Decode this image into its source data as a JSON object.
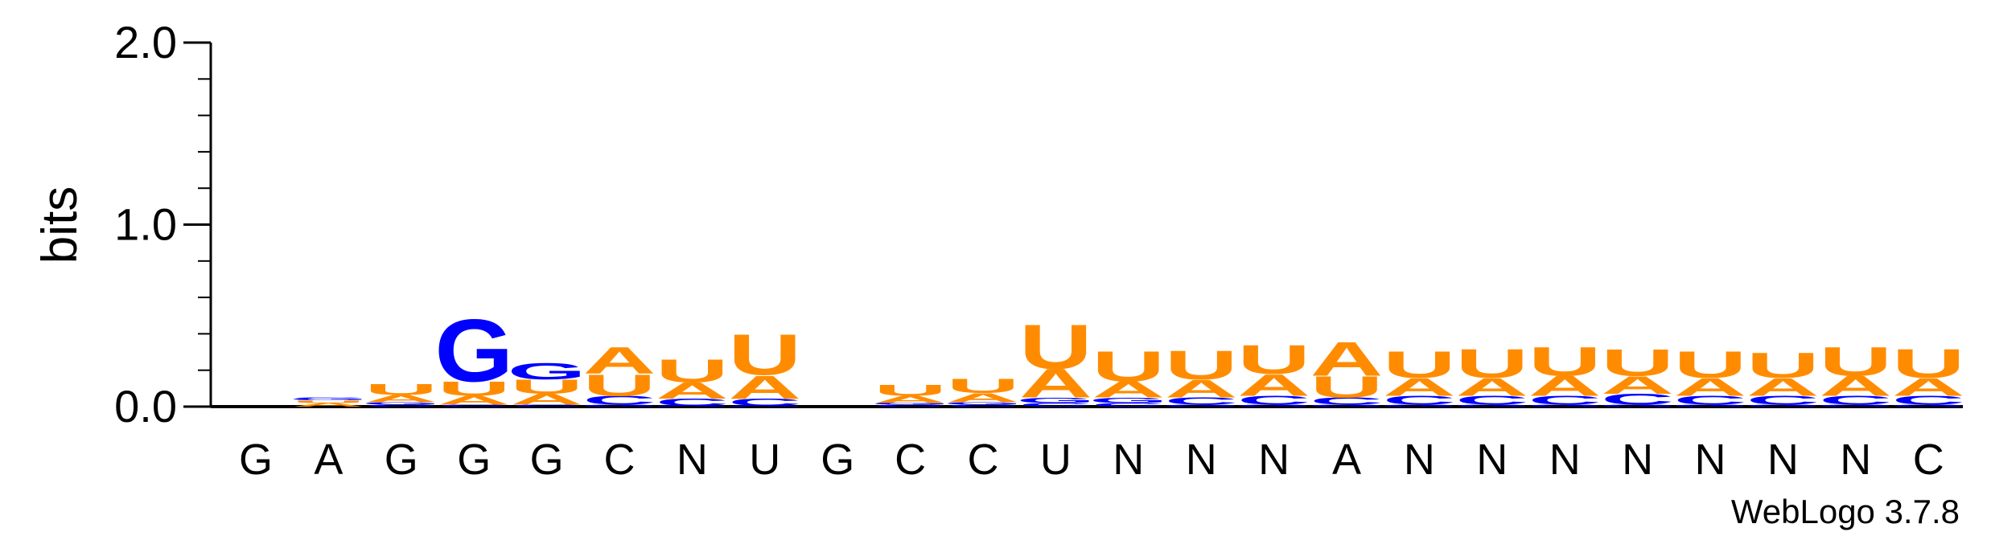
{
  "chart_data": {
    "type": "sequence-logo",
    "ylabel": "bits",
    "ylim": [
      0,
      2.0
    ],
    "yticks": [
      {
        "value": 0.0,
        "label": "0.0"
      },
      {
        "value": 1.0,
        "label": "1.0"
      },
      {
        "value": 2.0,
        "label": "2.0"
      }
    ],
    "colors": {
      "A": "#ff8c00",
      "U": "#ff8c00",
      "G": "#0000ff",
      "C": "#0000ff"
    },
    "positions": [
      {
        "label": "G",
        "stack": []
      },
      {
        "label": "A",
        "stack": [
          {
            "base": "A",
            "bits": 0.02
          },
          {
            "base": "U",
            "bits": 0.015
          },
          {
            "base": "G",
            "bits": 0.01
          },
          {
            "base": "C",
            "bits": 0.005
          }
        ]
      },
      {
        "label": "G",
        "stack": [
          {
            "base": "C",
            "bits": 0.01
          },
          {
            "base": "G",
            "bits": 0.015
          },
          {
            "base": "A",
            "bits": 0.04
          },
          {
            "base": "U",
            "bits": 0.06
          }
        ]
      },
      {
        "label": "G",
        "stack": [
          {
            "base": "C",
            "bits": 0.01
          },
          {
            "base": "A",
            "bits": 0.05
          },
          {
            "base": "U",
            "bits": 0.08
          },
          {
            "base": "G",
            "bits": 0.35
          }
        ]
      },
      {
        "label": "G",
        "stack": [
          {
            "base": "C",
            "bits": 0.01
          },
          {
            "base": "A",
            "bits": 0.06
          },
          {
            "base": "U",
            "bits": 0.08
          },
          {
            "base": "G",
            "bits": 0.09
          }
        ]
      },
      {
        "label": "C",
        "stack": [
          {
            "base": "G",
            "bits": 0.01
          },
          {
            "base": "C",
            "bits": 0.05
          },
          {
            "base": "U",
            "bits": 0.12
          },
          {
            "base": "A",
            "bits": 0.15
          }
        ]
      },
      {
        "label": "N",
        "stack": [
          {
            "base": "G",
            "bits": 0.005
          },
          {
            "base": "C",
            "bits": 0.04
          },
          {
            "base": "A",
            "bits": 0.09
          },
          {
            "base": "U",
            "bits": 0.13
          }
        ]
      },
      {
        "label": "U",
        "stack": [
          {
            "base": "G",
            "bits": 0.005
          },
          {
            "base": "C",
            "bits": 0.04
          },
          {
            "base": "A",
            "bits": 0.13
          },
          {
            "base": "U",
            "bits": 0.23
          }
        ]
      },
      {
        "label": "G",
        "stack": []
      },
      {
        "label": "C",
        "stack": [
          {
            "base": "C",
            "bits": 0.01
          },
          {
            "base": "G",
            "bits": 0.01
          },
          {
            "base": "A",
            "bits": 0.04
          },
          {
            "base": "U",
            "bits": 0.06
          }
        ]
      },
      {
        "label": "C",
        "stack": [
          {
            "base": "C",
            "bits": 0.01
          },
          {
            "base": "G",
            "bits": 0.015
          },
          {
            "base": "A",
            "bits": 0.05
          },
          {
            "base": "U",
            "bits": 0.08
          }
        ]
      },
      {
        "label": "U",
        "stack": [
          {
            "base": "C",
            "bits": 0.02
          },
          {
            "base": "G",
            "bits": 0.03
          },
          {
            "base": "A",
            "bits": 0.16
          },
          {
            "base": "U",
            "bits": 0.25
          }
        ]
      },
      {
        "label": "N",
        "stack": [
          {
            "base": "C",
            "bits": 0.02
          },
          {
            "base": "G",
            "bits": 0.03
          },
          {
            "base": "A",
            "bits": 0.09
          },
          {
            "base": "U",
            "bits": 0.17
          }
        ]
      },
      {
        "label": "N",
        "stack": [
          {
            "base": "G",
            "bits": 0.01
          },
          {
            "base": "C",
            "bits": 0.04
          },
          {
            "base": "A",
            "bits": 0.1
          },
          {
            "base": "U",
            "bits": 0.16
          }
        ]
      },
      {
        "label": "N",
        "stack": [
          {
            "base": "G",
            "bits": 0.01
          },
          {
            "base": "C",
            "bits": 0.05
          },
          {
            "base": "A",
            "bits": 0.12
          },
          {
            "base": "U",
            "bits": 0.16
          }
        ]
      },
      {
        "label": "A",
        "stack": [
          {
            "base": "G",
            "bits": 0.01
          },
          {
            "base": "C",
            "bits": 0.04
          },
          {
            "base": "U",
            "bits": 0.12
          },
          {
            "base": "A",
            "bits": 0.19
          }
        ]
      },
      {
        "label": "N",
        "stack": [
          {
            "base": "G",
            "bits": 0.01
          },
          {
            "base": "C",
            "bits": 0.05
          },
          {
            "base": "A",
            "bits": 0.1
          },
          {
            "base": "U",
            "bits": 0.15
          }
        ]
      },
      {
        "label": "N",
        "stack": [
          {
            "base": "G",
            "bits": 0.01
          },
          {
            "base": "C",
            "bits": 0.05
          },
          {
            "base": "A",
            "bits": 0.1
          },
          {
            "base": "U",
            "bits": 0.16
          }
        ]
      },
      {
        "label": "N",
        "stack": [
          {
            "base": "G",
            "bits": 0.01
          },
          {
            "base": "C",
            "bits": 0.05
          },
          {
            "base": "A",
            "bits": 0.11
          },
          {
            "base": "U",
            "bits": 0.16
          }
        ]
      },
      {
        "label": "N",
        "stack": [
          {
            "base": "G",
            "bits": 0.01
          },
          {
            "base": "C",
            "bits": 0.06
          },
          {
            "base": "A",
            "bits": 0.1
          },
          {
            "base": "U",
            "bits": 0.15
          }
        ]
      },
      {
        "label": "N",
        "stack": [
          {
            "base": "G",
            "bits": 0.01
          },
          {
            "base": "C",
            "bits": 0.05
          },
          {
            "base": "A",
            "bits": 0.1
          },
          {
            "base": "U",
            "bits": 0.15
          }
        ]
      },
      {
        "label": "N",
        "stack": [
          {
            "base": "G",
            "bits": 0.01
          },
          {
            "base": "C",
            "bits": 0.05
          },
          {
            "base": "A",
            "bits": 0.1
          },
          {
            "base": "U",
            "bits": 0.14
          }
        ]
      },
      {
        "label": "N",
        "stack": [
          {
            "base": "G",
            "bits": 0.01
          },
          {
            "base": "C",
            "bits": 0.05
          },
          {
            "base": "A",
            "bits": 0.11
          },
          {
            "base": "U",
            "bits": 0.16
          }
        ]
      },
      {
        "label": "C",
        "stack": [
          {
            "base": "G",
            "bits": 0.01
          },
          {
            "base": "C",
            "bits": 0.05
          },
          {
            "base": "A",
            "bits": 0.1
          },
          {
            "base": "U",
            "bits": 0.16
          }
        ]
      }
    ]
  },
  "credit": "WebLogo 3.7.8"
}
